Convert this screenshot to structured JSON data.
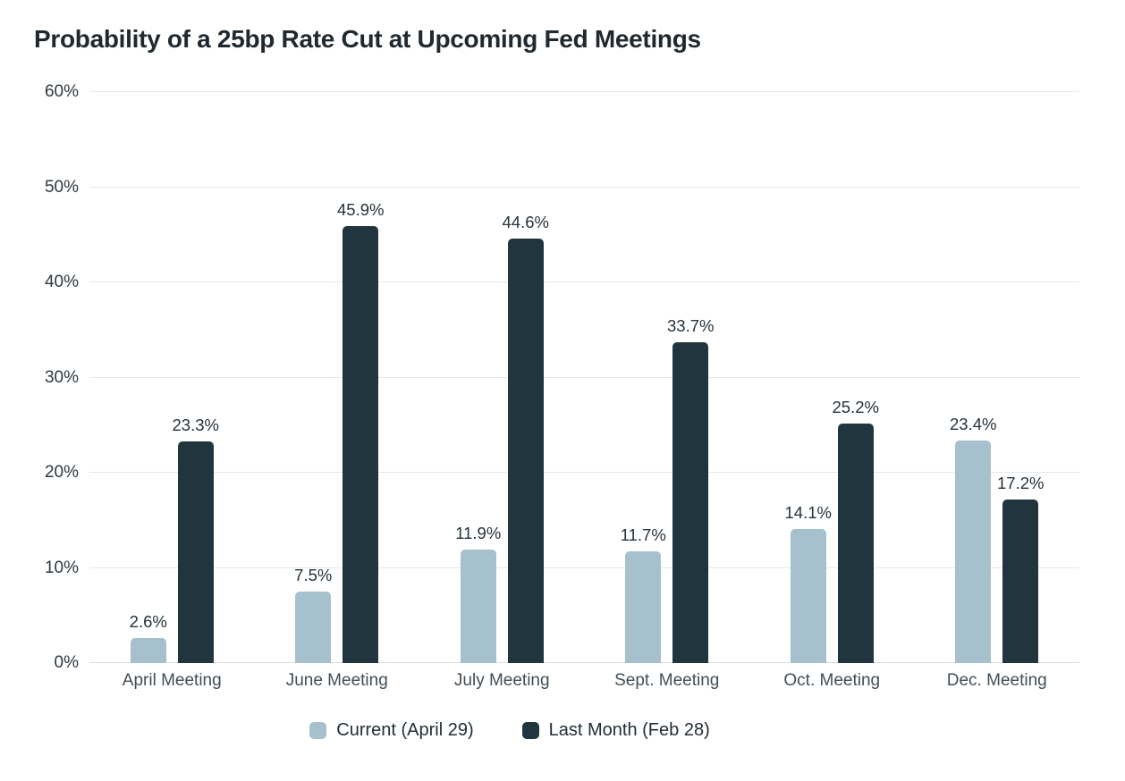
{
  "colors": {
    "current": "#a7c0cd",
    "last_month": "#21353e",
    "gridline": "#e5e7e9",
    "axis_line": "#d8dcde",
    "title_text": "#20292f",
    "axis_text": "#2e383e",
    "value_text": "#26323a",
    "category_text": "#434e56",
    "legend_text": "#222e34",
    "background": "#ffffff"
  },
  "chart_data": {
    "type": "bar",
    "title": "Probability of a 25bp Rate Cut at Upcoming Fed Meetings",
    "categories": [
      "April Meeting",
      "June Meeting",
      "July Meeting",
      "Sept. Meeting",
      "Oct. Meeting",
      "Dec. Meeting"
    ],
    "series": [
      {
        "name": "Current (April 29)",
        "color_key": "current",
        "values": [
          2.6,
          7.5,
          11.9,
          11.7,
          14.1,
          23.4
        ],
        "labels": [
          "2.6%",
          "7.5%",
          "11.9%",
          "11.7%",
          "14.1%",
          "23.4%"
        ]
      },
      {
        "name": "Last Month (Feb 28)",
        "color_key": "last_month",
        "values": [
          23.3,
          45.9,
          44.6,
          33.7,
          25.2,
          17.2
        ],
        "labels": [
          "23.3%",
          "45.9%",
          "44.6%",
          "33.7%",
          "25.2%",
          "17.2%"
        ]
      }
    ],
    "xlabel": "",
    "ylabel": "",
    "ylim": [
      0,
      60
    ],
    "yticks": [
      0,
      10,
      20,
      30,
      40,
      50,
      60
    ],
    "ytick_labels": [
      "0%",
      "10%",
      "20%",
      "30%",
      "40%",
      "50%",
      "60%"
    ],
    "grid": true,
    "legend_position": "bottom"
  }
}
